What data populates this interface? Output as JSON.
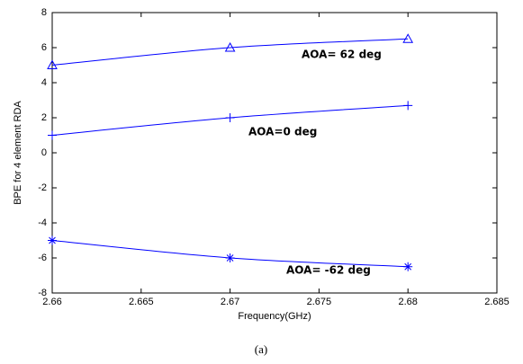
{
  "chart_data": {
    "type": "line",
    "xlabel": "Frequency(GHz)",
    "ylabel": "BPE for 4 element RDA",
    "caption": "(a)",
    "x": [
      2.66,
      2.67,
      2.68
    ],
    "series": [
      {
        "color": "#0000ff",
        "marker": "triangle",
        "values": [
          5,
          6,
          6.5
        ]
      },
      {
        "color": "#0000ff",
        "marker": "plus",
        "values": [
          1,
          2,
          2.7
        ]
      },
      {
        "color": "#0000ff",
        "marker": "asterisk",
        "values": [
          -5,
          -6,
          -6.5
        ]
      }
    ],
    "annotations": [
      "AOA= 62 deg",
      "AOA=0 deg",
      "AOA= -62 deg"
    ],
    "xlim": [
      2.66,
      2.685
    ],
    "xticks": [
      2.66,
      2.665,
      2.67,
      2.675,
      2.68,
      2.685
    ],
    "ylim": [
      -8,
      8
    ],
    "yticks": [
      -8,
      -6,
      -4,
      -2,
      0,
      2,
      4,
      6,
      8
    ]
  }
}
